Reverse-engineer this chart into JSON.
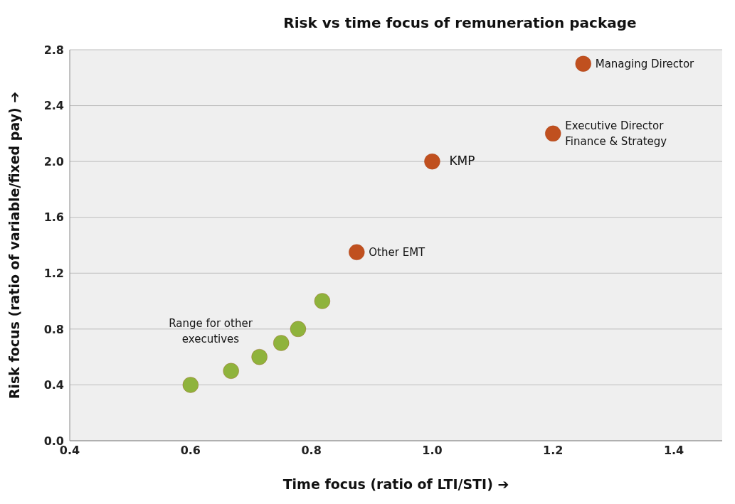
{
  "chart_data": {
    "type": "scatter",
    "title": "Risk vs time focus of remuneration package",
    "xlabel": "Time focus (ratio of LTI/STI)   ➔",
    "ylabel": "Risk focus    (ratio of variable/fixed pay)  ➔",
    "series": [
      {
        "color": "#8fb33c",
        "x": [
          0.6,
          0.667,
          0.714,
          0.75,
          0.778,
          0.818
        ],
        "values": [
          0.4,
          0.5,
          0.6,
          0.7,
          0.8,
          1.0
        ]
      },
      {
        "color": "#c0501f",
        "x": [
          0.875,
          1.0,
          1.2,
          1.25
        ],
        "values": [
          1.35,
          2.0,
          2.2,
          2.7
        ]
      }
    ],
    "annotations": [
      {
        "text": "Managing Director",
        "x": 1.25,
        "y": 2.7
      },
      {
        "text": "Executive Director\nFinance & Strategy",
        "x": 1.2,
        "y": 2.2
      },
      {
        "text": "KMP",
        "x": 1.0,
        "y": 2.0
      },
      {
        "text": "Other EMT",
        "x": 0.875,
        "y": 1.35
      },
      "Range for other\nexecutives"
    ],
    "xlim": [
      0.4,
      1.48
    ],
    "xticks": [
      0.4,
      0.6,
      0.8,
      {
        "value": 1,
        "label": "1.0"
      },
      1.2,
      1.4
    ],
    "ylim": [
      0,
      2.8
    ],
    "yticks": [
      {
        "value": 0,
        "label": "0.0"
      },
      0.4,
      0.8,
      1.2,
      1.6,
      {
        "value": 2,
        "label": "2.0"
      },
      2.4,
      2.8
    ],
    "grid": "y",
    "legend": false,
    "marker": "circle"
  }
}
